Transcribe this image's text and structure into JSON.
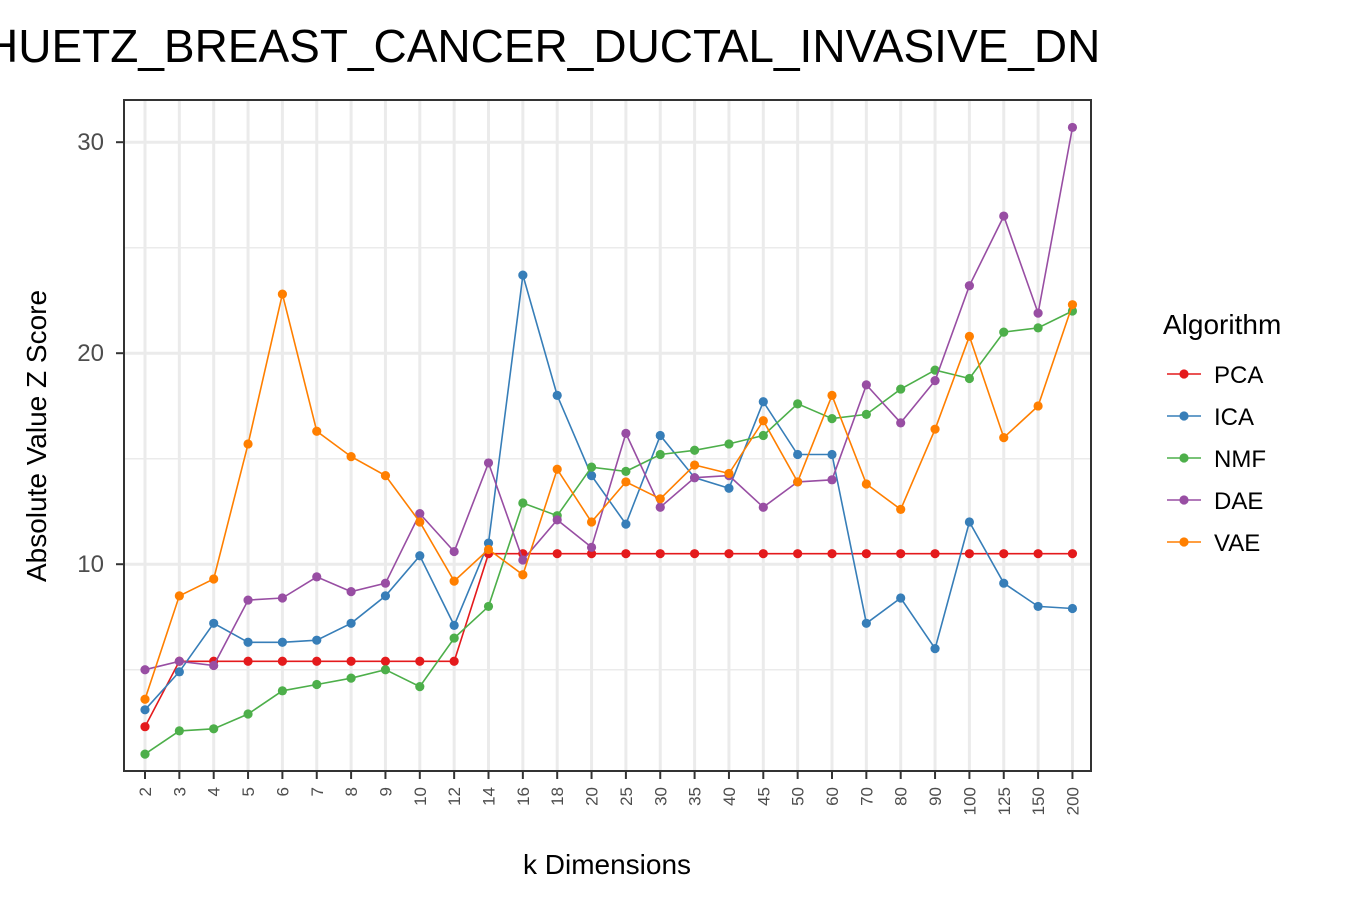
{
  "chart_data": {
    "type": "line",
    "title": "HUETZ_BREAST_CANCER_DUCTAL_INVASIVE_DN",
    "xlabel": "k Dimensions",
    "ylabel": "Absolute Value Z Score",
    "categories": [
      "2",
      "3",
      "4",
      "5",
      "6",
      "7",
      "8",
      "9",
      "10",
      "12",
      "14",
      "16",
      "18",
      "20",
      "25",
      "30",
      "35",
      "40",
      "45",
      "50",
      "60",
      "70",
      "80",
      "90",
      "100",
      "125",
      "150",
      "200"
    ],
    "ylim": [
      0.2,
      32
    ],
    "yticks": [
      10,
      20,
      30
    ],
    "grid": true,
    "legend_title": "Algorithm",
    "legend_position": "right",
    "series": [
      {
        "name": "PCA",
        "color": "#E41A1C",
        "values": [
          2.3,
          5.4,
          5.4,
          5.4,
          5.4,
          5.4,
          5.4,
          5.4,
          5.4,
          5.4,
          10.5,
          10.5,
          10.5,
          10.5,
          10.5,
          10.5,
          10.5,
          10.5,
          10.5,
          10.5,
          10.5,
          10.5,
          10.5,
          10.5,
          10.5,
          10.5,
          10.5,
          10.5
        ]
      },
      {
        "name": "ICA",
        "color": "#377EB8",
        "values": [
          3.1,
          4.9,
          7.2,
          6.3,
          6.3,
          6.4,
          7.2,
          8.5,
          10.4,
          7.1,
          11.0,
          23.7,
          18.0,
          14.2,
          11.9,
          16.1,
          14.1,
          13.6,
          17.7,
          15.2,
          15.2,
          7.2,
          8.4,
          6.0,
          12.0,
          9.1,
          8.0,
          7.9
        ]
      },
      {
        "name": "NMF",
        "color": "#4DAF4A",
        "values": [
          1.0,
          2.1,
          2.2,
          2.9,
          4.0,
          4.3,
          4.6,
          5.0,
          4.2,
          6.5,
          8.0,
          12.9,
          12.3,
          14.6,
          14.4,
          15.2,
          15.4,
          15.7,
          16.1,
          17.6,
          16.9,
          17.1,
          18.3,
          19.2,
          18.8,
          21.0,
          21.2,
          22.0
        ]
      },
      {
        "name": "DAE",
        "color": "#984EA3",
        "values": [
          5.0,
          5.4,
          5.2,
          8.3,
          8.4,
          9.4,
          8.7,
          9.1,
          12.4,
          10.6,
          14.8,
          10.2,
          12.1,
          10.8,
          16.2,
          12.7,
          14.1,
          14.2,
          12.7,
          13.9,
          14.0,
          18.5,
          16.7,
          18.7,
          23.2,
          26.5,
          21.9,
          30.7
        ]
      },
      {
        "name": "VAE",
        "color": "#FF7F00",
        "values": [
          3.6,
          8.5,
          9.3,
          15.7,
          22.8,
          16.3,
          15.1,
          14.2,
          12.0,
          9.2,
          10.7,
          9.5,
          14.5,
          12.0,
          13.9,
          13.1,
          14.7,
          14.3,
          16.8,
          13.9,
          18.0,
          13.8,
          12.6,
          16.4,
          20.8,
          16.0,
          17.5,
          22.3
        ]
      }
    ]
  }
}
